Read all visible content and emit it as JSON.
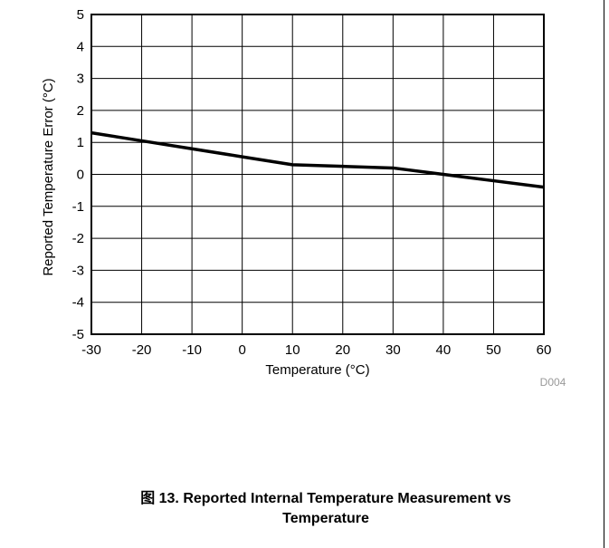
{
  "chart_data": {
    "type": "line",
    "title": "",
    "xlabel": "Temperature (°C)",
    "ylabel": "Reported Temperature Error (°C)",
    "xlim": [
      -30,
      60
    ],
    "ylim": [
      -5,
      5
    ],
    "x_ticks": [
      -30,
      -20,
      -10,
      0,
      10,
      20,
      30,
      40,
      50,
      60
    ],
    "y_ticks": [
      -5,
      -4,
      -3,
      -2,
      -1,
      0,
      1,
      2,
      3,
      4,
      5
    ],
    "grid": true,
    "series": [
      {
        "x": [
          -30,
          -20,
          -10,
          0,
          10,
          20,
          30,
          40,
          50,
          60
        ],
        "y": [
          1.3,
          1.05,
          0.8,
          0.55,
          0.3,
          0.25,
          0.2,
          0.0,
          -0.2,
          -0.4
        ]
      }
    ],
    "line_color": "#000000",
    "figure_code": "D004"
  },
  "caption": {
    "line1": "图 13. Reported Internal Temperature Measurement vs",
    "line2": "Temperature"
  }
}
